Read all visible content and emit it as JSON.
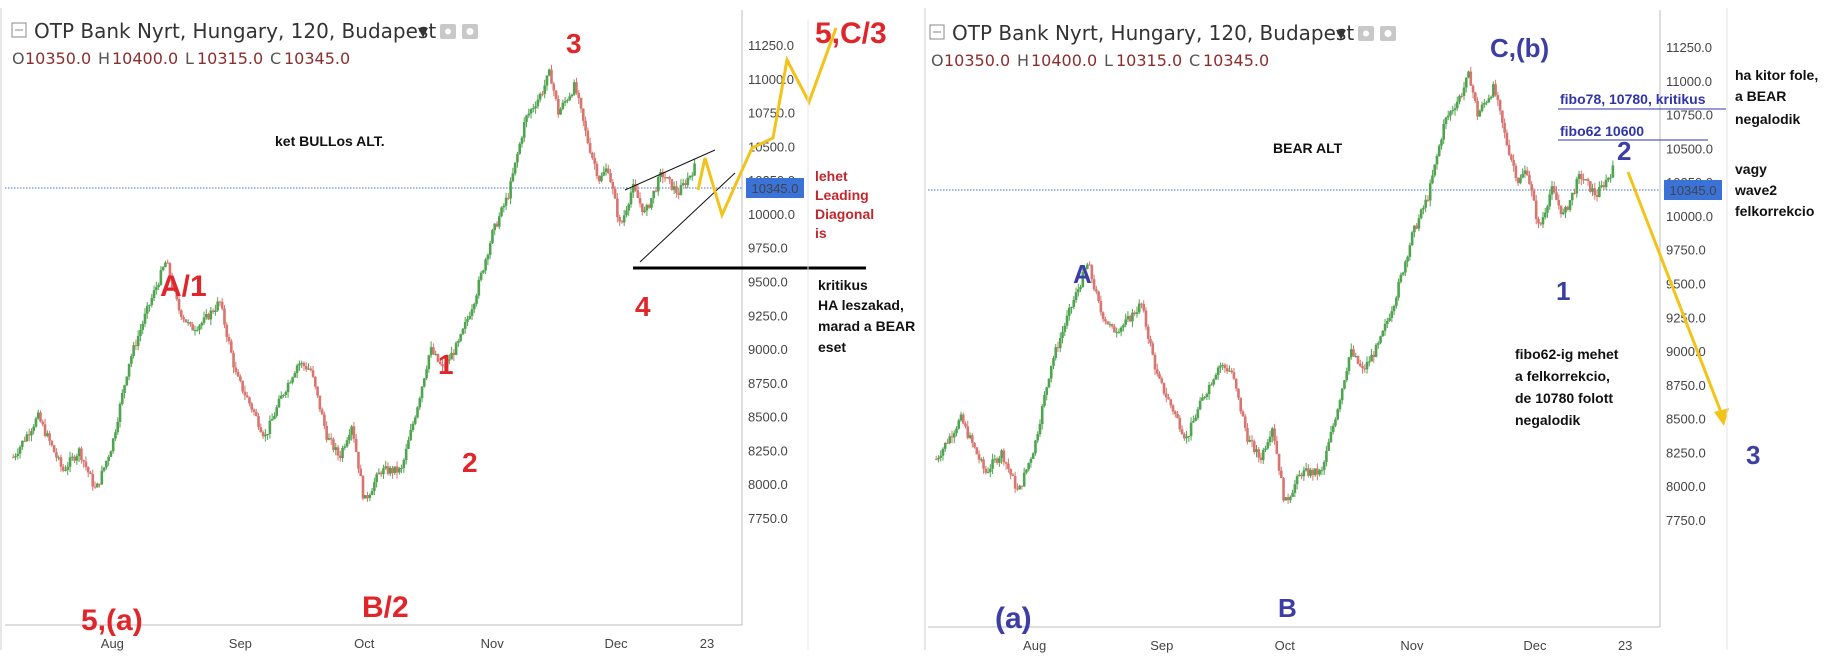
{
  "chart_data": [
    {
      "type": "candlestick",
      "title": "OTP Bank Nyrt, Hungary, 120, Budapest",
      "ohlc": {
        "open_label": "O",
        "open": "10350.0",
        "high_label": "H",
        "high": "10400.0",
        "low_label": "L",
        "low": "10315.0",
        "close_label": "C",
        "close": "10345.0"
      },
      "last_price": "10345.0",
      "ylim": [
        7500,
        11600
      ],
      "yticks": [
        "11250.0",
        "11000.0",
        "10750.0",
        "10500.0",
        "10250.0",
        "10000.0",
        "9750.0",
        "9500.0",
        "9250.0",
        "9000.0",
        "8750.0",
        "8500.0",
        "8250.0",
        "8000.0",
        "7750.0"
      ],
      "xticks": [
        "Aug",
        "Sep",
        "Oct",
        "Nov",
        "Dec",
        "23"
      ],
      "x_days": [
        0,
        31,
        61,
        92,
        122,
        144
      ],
      "xlim": [
        -26,
        152
      ],
      "path": [
        [
          -24,
          8200
        ],
        [
          -18,
          8500
        ],
        [
          -12,
          8100
        ],
        [
          -8,
          8250
        ],
        [
          -4,
          7950
        ],
        [
          0,
          8300
        ],
        [
          4,
          8900
        ],
        [
          8,
          9250
        ],
        [
          13,
          9650
        ],
        [
          16,
          9300
        ],
        [
          19,
          9150
        ],
        [
          22,
          9200
        ],
        [
          26,
          9350
        ],
        [
          30,
          8800
        ],
        [
          34,
          8550
        ],
        [
          37,
          8350
        ],
        [
          41,
          8650
        ],
        [
          45,
          8900
        ],
        [
          48,
          8850
        ],
        [
          52,
          8350
        ],
        [
          55,
          8200
        ],
        [
          58,
          8450
        ],
        [
          61,
          7870
        ],
        [
          65,
          8100
        ],
        [
          70,
          8100
        ],
        [
          74,
          8600
        ],
        [
          77,
          9000
        ],
        [
          80,
          8850
        ],
        [
          84,
          9050
        ],
        [
          88,
          9400
        ],
        [
          92,
          9850
        ],
        [
          96,
          10150
        ],
        [
          100,
          10700
        ],
        [
          104,
          10900
        ],
        [
          106,
          11050
        ],
        [
          108,
          10750
        ],
        [
          112,
          10950
        ],
        [
          115,
          10550
        ],
        [
          118,
          10250
        ],
        [
          120,
          10350
        ],
        [
          123,
          9900
        ],
        [
          126,
          10200
        ],
        [
          129,
          10000
        ],
        [
          133,
          10300
        ],
        [
          137,
          10150
        ],
        [
          141,
          10345
        ]
      ],
      "wave_labels": [
        "5,(a)",
        "A/1",
        "B/2",
        "1",
        "2",
        "3",
        "4",
        "5,C/3"
      ],
      "annotations": {
        "alt": "ket BULLos  ALT.",
        "leading": [
          "lehet",
          "Leading",
          "Diagonal",
          "is"
        ],
        "kritikus": [
          "kritikus",
          "HA leszakad,",
          "marad a BEAR",
          "eset"
        ]
      },
      "grid": false
    },
    {
      "type": "candlestick",
      "title": "OTP Bank Nyrt, Hungary, 120, Budapest",
      "ohlc": {
        "open_label": "O",
        "open": "10350.0",
        "high_label": "H",
        "high": "10400.0",
        "low_label": "L",
        "low": "10315.0",
        "close_label": "C",
        "close": "10345.0"
      },
      "last_price": "10345.0",
      "ylim": [
        7500,
        11600
      ],
      "yticks": [
        "11250.0",
        "11000.0",
        "10750.0",
        "10500.0",
        "10250.0",
        "10000.0",
        "9750.0",
        "9500.0",
        "9250.0",
        "9000.0",
        "8750.0",
        "8500.0",
        "8250.0",
        "8000.0",
        "7750.0"
      ],
      "xticks": [
        "Aug",
        "Sep",
        "Oct",
        "Nov",
        "Dec",
        "23"
      ],
      "x_days": [
        0,
        31,
        61,
        92,
        122,
        144
      ],
      "xlim": [
        -26,
        152
      ],
      "wave_labels": [
        "(a)",
        "A",
        "B",
        "C,(b)",
        "1",
        "2",
        "3"
      ],
      "annotations": {
        "alt": "BEAR ALT",
        "fibo78": "fibo78, 10780, kritikus",
        "fibo62": "fibo62  10600",
        "kitor": [
          "ha kitor fole,",
          "a BEAR",
          "negalodik"
        ],
        "vagy": [
          "vagy",
          "wave2",
          "felkorrekcio"
        ],
        "fibo62ig": [
          "fibo62-ig mehet",
          "a felkorrekcio,",
          "de 10780 folott",
          "negalodik"
        ]
      },
      "grid": false
    }
  ],
  "colors": {
    "up": "#4fa44f",
    "down": "#d9746f",
    "left_waves": "#e0262b",
    "right_waves": "#3c3ea6",
    "projection": "#f2c318",
    "price_tag": "#3a72d8",
    "dark_red": "#c1272d",
    "fibo": "#2f35a8"
  }
}
